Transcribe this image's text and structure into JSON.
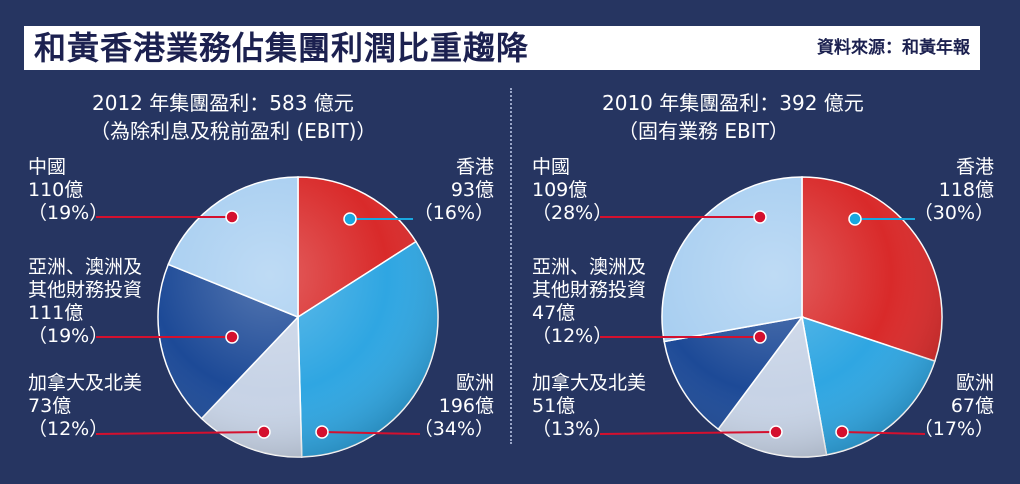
{
  "header": {
    "title": "和黃香港業務佔集團利潤比重趨降",
    "source": "資料來源：和黃年報"
  },
  "colors": {
    "background": "#263561",
    "hong_kong": "#d92a2a",
    "europe": "#2fa6e2",
    "north_america": "#c7d3e6",
    "asia_australia": "#1d4a97",
    "china": "#a9cff1",
    "marker_red": "#d4102e",
    "marker_blue": "#19a8e0"
  },
  "chart_data": [
    {
      "type": "pie",
      "title": "2012 年集團盈利：583 億元",
      "subtitle": "（為除利息及稅前盈利 (EBIT)）",
      "slices": [
        {
          "label": "香港",
          "value": 93,
          "value_text": "93億",
          "percent": 16,
          "percent_text": "（16%）"
        },
        {
          "label": "歐洲",
          "value": 196,
          "value_text": "196億",
          "percent": 34,
          "percent_text": "（34%）"
        },
        {
          "label": "加拿大及北美",
          "value": 73,
          "value_text": "73億",
          "percent": 12,
          "percent_text": "（12%）"
        },
        {
          "label_lines": [
            "亞洲、澳洲及",
            "其他財務投資"
          ],
          "value": 111,
          "value_text": "111億",
          "percent": 19,
          "percent_text": "（19%）"
        },
        {
          "label": "中國",
          "value": 110,
          "value_text": "110億",
          "percent": 19,
          "percent_text": "（19%）"
        }
      ]
    },
    {
      "type": "pie",
      "title": "2010 年集團盈利：392 億元",
      "subtitle": "（固有業務 EBIT）",
      "slices": [
        {
          "label": "香港",
          "value": 118,
          "value_text": "118億",
          "percent": 30,
          "percent_text": "（30%）"
        },
        {
          "label": "歐洲",
          "value": 67,
          "value_text": "67億",
          "percent": 17,
          "percent_text": "（17%）"
        },
        {
          "label": "加拿大及北美",
          "value": 51,
          "value_text": "51億",
          "percent": 13,
          "percent_text": "（13%）"
        },
        {
          "label_lines": [
            "亞洲、澳洲及",
            "其他財務投資"
          ],
          "value": 47,
          "value_text": "47億",
          "percent": 12,
          "percent_text": "（12%）"
        },
        {
          "label": "中國",
          "value": 109,
          "value_text": "109億",
          "percent": 28,
          "percent_text": "（28%）"
        }
      ]
    }
  ]
}
